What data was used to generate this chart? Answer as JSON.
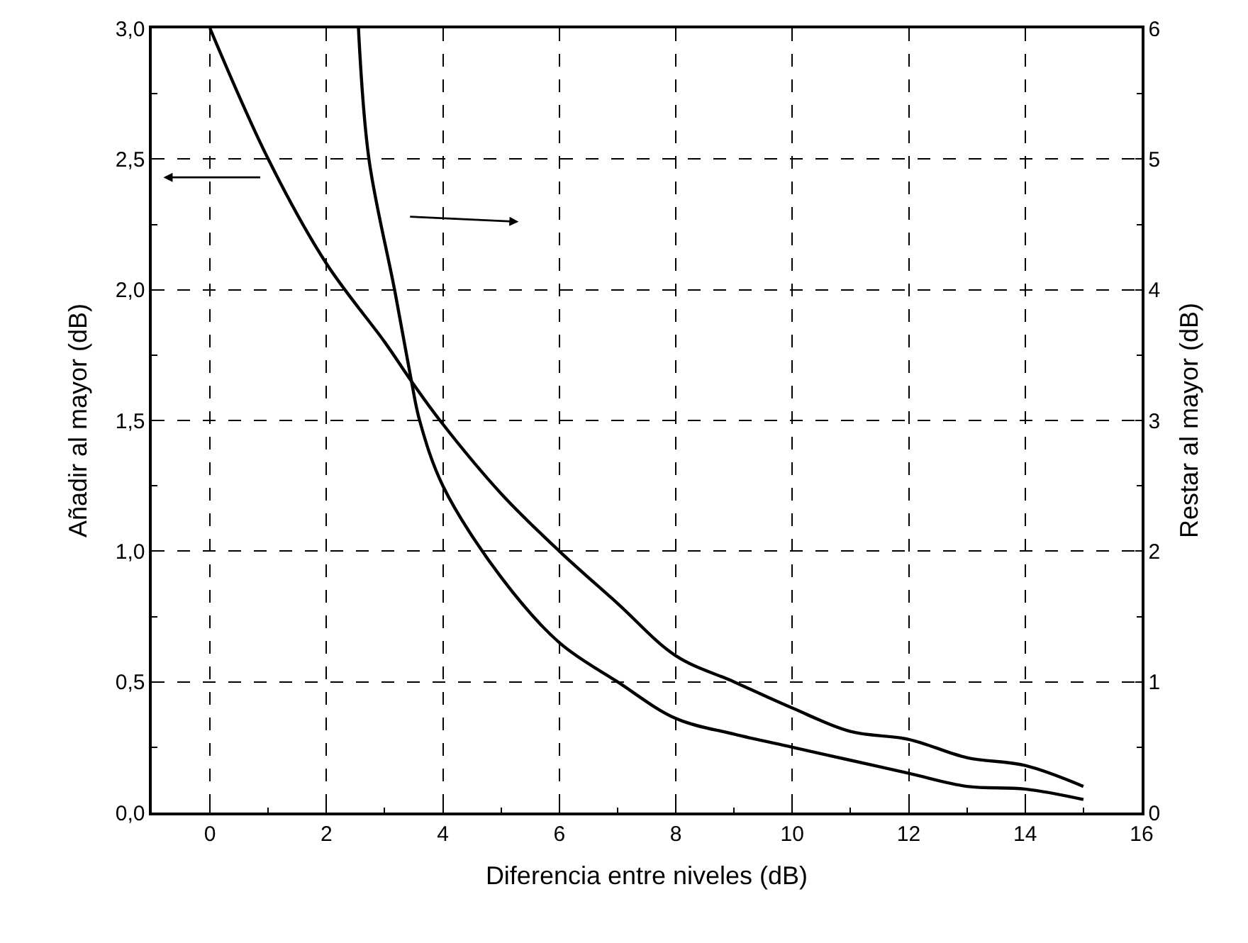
{
  "chart_data": {
    "type": "line",
    "xlabel": "Diferencia entre niveles (dB)",
    "ylabel": "Añadir al mayor (dB)",
    "y2label": "Restar al mayor (dB)",
    "series": [
      {
        "color": "#000000",
        "x": [
          0,
          1,
          2,
          3,
          3.46,
          3.95,
          5,
          6,
          7,
          8,
          9,
          10,
          11,
          12,
          13,
          14,
          15
        ],
        "values": [
          3.0,
          2.5,
          2.1,
          1.8,
          1.65,
          1.5,
          1.22,
          1.0,
          0.8,
          0.6,
          0.5,
          0.4,
          0.31,
          0.28,
          0.21,
          0.18,
          0.1
        ]
      },
      {
        "color": "#000000",
        "axis": "y2",
        "x": [
          2.55,
          2.73,
          3.17,
          3.46,
          3.6,
          4,
          5,
          6,
          7,
          8,
          9,
          10,
          11,
          12,
          13,
          14,
          15
        ],
        "values": [
          6.0,
          5.0,
          4.0,
          3.3,
          3.0,
          2.5,
          1.8,
          1.3,
          1.0,
          0.72,
          0.6,
          0.5,
          0.4,
          0.3,
          0.2,
          0.18,
          0.1
        ]
      }
    ],
    "xlim": [
      -1,
      16
    ],
    "xticks": [
      0,
      2,
      4,
      6,
      8,
      10,
      12,
      14,
      16
    ],
    "ylim": [
      0,
      3
    ],
    "yticks": [
      {
        "value": 0,
        "label": "0,0"
      },
      {
        "value": 0.5,
        "label": "0,5"
      },
      {
        "value": 1,
        "label": "1,0"
      },
      {
        "value": 1.5,
        "label": "1,5"
      },
      {
        "value": 2,
        "label": "2,0"
      },
      {
        "value": 2.5,
        "label": "2,5"
      },
      {
        "value": 3,
        "label": "3,0"
      }
    ],
    "y2lim": [
      0,
      6
    ],
    "y2ticks": [
      0,
      1,
      2,
      3,
      4,
      5,
      6
    ],
    "grid": true,
    "marker": "none",
    "line_style": "solid"
  }
}
